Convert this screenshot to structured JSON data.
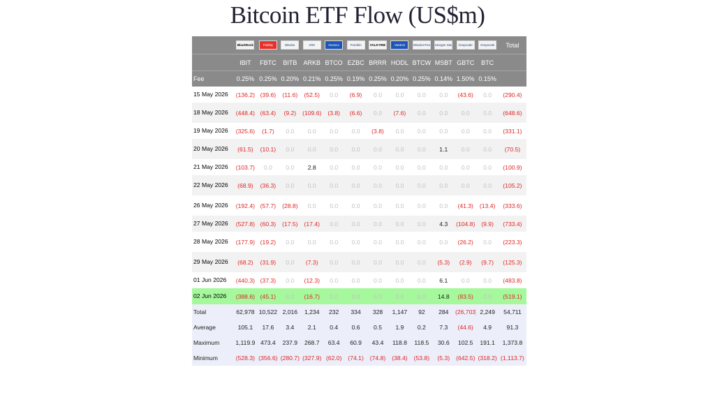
{
  "title": "Bitcoin ETF Flow (US$m)",
  "header": {
    "total_label": "Total",
    "fee_label": "Fee",
    "issuers": [
      {
        "logo": "BlackRock",
        "style": "blk"
      },
      {
        "logo": "Fidelity",
        "style": "red"
      },
      {
        "logo": "Bitwise",
        "style": "nv"
      },
      {
        "logo": "ARK",
        "style": "nv"
      },
      {
        "logo": "Invesco",
        "style": "blu"
      },
      {
        "logo": "Franklin",
        "style": "nv"
      },
      {
        "logo": "VALKYRIE",
        "style": "blk"
      },
      {
        "logo": "VanEck",
        "style": "blu"
      },
      {
        "logo": "WisdomTree",
        "style": "nv"
      },
      {
        "logo": "Morgan Stanley",
        "style": "nv"
      },
      {
        "logo": "Grayscale",
        "style": "nv"
      },
      {
        "logo": "Grayscale",
        "style": "nv"
      }
    ],
    "tickers": [
      "IBIT",
      "FBTC",
      "BITB",
      "ARKB",
      "BTCO",
      "EZBC",
      "BRRR",
      "HODL",
      "BTCW",
      "MSBT",
      "GBTC",
      "BTC"
    ],
    "fees": [
      "0.25%",
      "0.25%",
      "0.20%",
      "0.21%",
      "0.25%",
      "0.19%",
      "0.25%",
      "0.20%",
      "0.25%",
      "0.14%",
      "1.50%",
      "0.15%"
    ]
  },
  "rows": [
    {
      "date": "15 May 2026",
      "short": true,
      "values": [
        "(136.2)",
        "(39.6)",
        "(11.6)",
        "(52.5)",
        "0.0",
        "(6.9)",
        "0.0",
        "0.0",
        "0.0",
        "0.0",
        "(43.6)",
        "0.0"
      ],
      "total": "(290.4)"
    },
    {
      "date": "18 May 2026",
      "short": false,
      "values": [
        "(448.4)",
        "(63.4)",
        "(9.2)",
        "(109.6)",
        "(3.8)",
        "(6.6)",
        "0.0",
        "(7.6)",
        "0.0",
        "0.0",
        "0.0",
        "0.0"
      ],
      "total": "(648.6)"
    },
    {
      "date": "19 May 2026",
      "short": true,
      "values": [
        "(325.6)",
        "(1.7)",
        "0.0",
        "0.0",
        "0.0",
        "0.0",
        "(3.8)",
        "0.0",
        "0.0",
        "0.0",
        "0.0",
        "0.0"
      ],
      "total": "(331.1)"
    },
    {
      "date": "20 May 2026",
      "short": false,
      "values": [
        "(61.5)",
        "(10.1)",
        "0.0",
        "0.0",
        "0.0",
        "0.0",
        "0.0",
        "0.0",
        "0.0",
        "1.1",
        "0.0",
        "0.0"
      ],
      "total": "(70.5)"
    },
    {
      "date": "21 May 2026",
      "short": true,
      "values": [
        "(103.7)",
        "0.0",
        "0.0",
        "2.8",
        "0.0",
        "0.0",
        "0.0",
        "0.0",
        "0.0",
        "0.0",
        "0.0",
        "0.0"
      ],
      "total": "(100.9)"
    },
    {
      "date": "22 May 2026",
      "short": false,
      "values": [
        "(68.9)",
        "(36.3)",
        "0.0",
        "0.0",
        "0.0",
        "0.0",
        "0.0",
        "0.0",
        "0.0",
        "0.0",
        "0.0",
        "0.0"
      ],
      "total": "(105.2)"
    },
    {
      "date": "26 May 2026",
      "short": false,
      "values": [
        "(192.4)",
        "(57.7)",
        "(28.8)",
        "0.0",
        "0.0",
        "0.0",
        "0.0",
        "0.0",
        "0.0",
        "0.0",
        "(41.3)",
        "(13.4)"
      ],
      "total": "(333.6)"
    },
    {
      "date": "27 May 2026",
      "short": true,
      "values": [
        "(527.8)",
        "(60.3)",
        "(17.5)",
        "(17.4)",
        "0.0",
        "0.0",
        "0.0",
        "0.0",
        "0.0",
        "4.3",
        "(104.8)",
        "(9.9)"
      ],
      "total": "(733.4)"
    },
    {
      "date": "28 May 2026",
      "short": false,
      "values": [
        "(177.9)",
        "(19.2)",
        "0.0",
        "0.0",
        "0.0",
        "0.0",
        "0.0",
        "0.0",
        "0.0",
        "0.0",
        "(26.2)",
        "0.0"
      ],
      "total": "(223.3)"
    },
    {
      "date": "29 May 2026",
      "short": false,
      "values": [
        "(68.2)",
        "(31.9)",
        "0.0",
        "(7.3)",
        "0.0",
        "0.0",
        "0.0",
        "0.0",
        "0.0",
        "(5.3)",
        "(2.9)",
        "(9.7)"
      ],
      "total": "(125.3)"
    },
    {
      "date": "01 Jun 2026",
      "short": true,
      "values": [
        "(440.3)",
        "(37.3)",
        "0.0",
        "(12.3)",
        "0.0",
        "0.0",
        "0.0",
        "0.0",
        "0.0",
        "6.1",
        "0.0",
        "0.0"
      ],
      "total": "(483.8)"
    },
    {
      "date": "02 Jun 2026",
      "short": true,
      "highlight": true,
      "values": [
        "(388.6)",
        "(45.1)",
        "0.0",
        "(16.7)",
        "0.0",
        "0.0",
        "0.0",
        "0.0",
        "0.0",
        "14.8",
        "(83.5)",
        "0.0"
      ],
      "total": "(519.1)"
    }
  ],
  "summary": [
    {
      "label": "Total",
      "values": [
        "62,978",
        "10,522",
        "2,016",
        "1,234",
        "232",
        "334",
        "328",
        "1,147",
        "92",
        "284",
        "(26,703)",
        "2,249"
      ],
      "total": "54,711"
    },
    {
      "label": "Average",
      "values": [
        "105.1",
        "17.6",
        "3.4",
        "2.1",
        "0.4",
        "0.6",
        "0.5",
        "1.9",
        "0.2",
        "7.3",
        "(44.6)",
        "4.9"
      ],
      "total": "91.3"
    },
    {
      "label": "Maximum",
      "values": [
        "1,119.9",
        "473.4",
        "237.9",
        "268.7",
        "63.4",
        "60.9",
        "43.4",
        "118.8",
        "118.5",
        "30.6",
        "102.5",
        "191.1"
      ],
      "total": "1,373.8"
    },
    {
      "label": "Minimum",
      "values": [
        "(528.3)",
        "(356.6)",
        "(280.7)",
        "(327.9)",
        "(62.0)",
        "(74.1)",
        "(74.8)",
        "(38.4)",
        "(53.8)",
        "(5.3)",
        "(642.5)",
        "(318.2)"
      ],
      "total": "(1,113.7)"
    }
  ]
}
